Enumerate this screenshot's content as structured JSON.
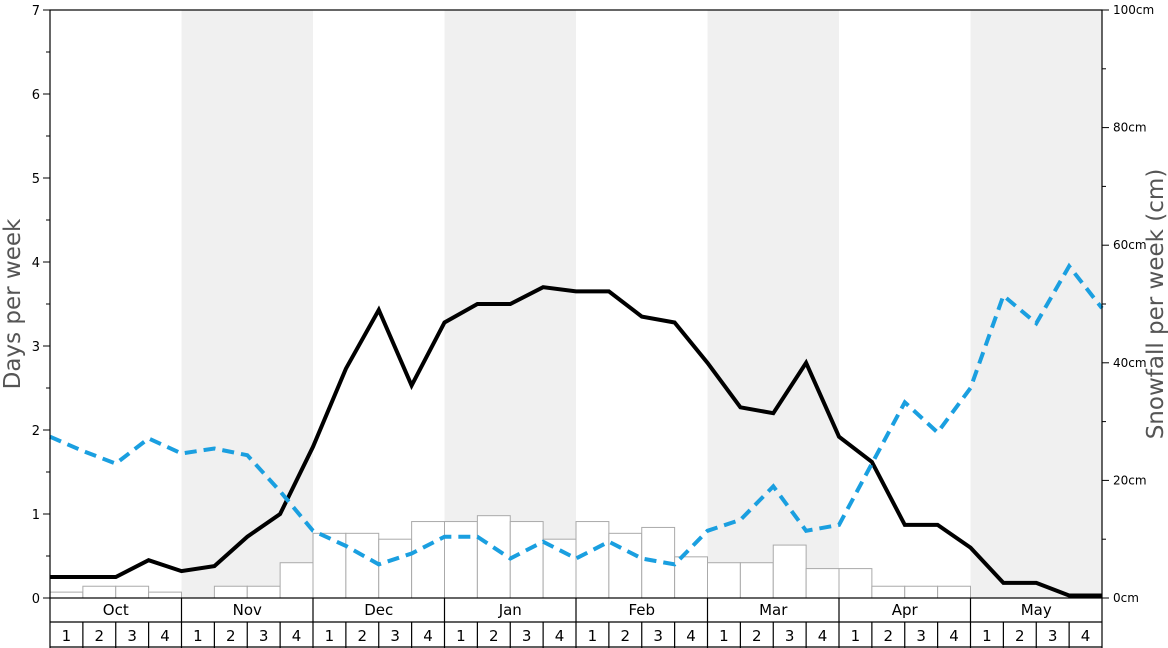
{
  "chart_data": {
    "type": "bar+line",
    "left_axis": {
      "label": "Days per week",
      "ylim": [
        0,
        7
      ],
      "ticks": [
        "0",
        "1",
        "2",
        "3",
        "4",
        "5",
        "6",
        "7"
      ]
    },
    "right_axis": {
      "label": "Snowfall per week (cm)",
      "ylim": [
        0,
        100
      ],
      "ticks": [
        "0cm",
        "20cm",
        "40cm",
        "60cm",
        "80cm",
        "100cm"
      ]
    },
    "months": [
      "Oct",
      "Nov",
      "Dec",
      "Jan",
      "Feb",
      "Mar",
      "Apr",
      "May"
    ],
    "week_labels": [
      "1",
      "2",
      "3",
      "4"
    ],
    "shaded_months": [
      "Nov",
      "Jan",
      "Mar",
      "May"
    ],
    "colors": {
      "band": "#f0f0f0",
      "bar_fill": "#ffffff",
      "bar_stroke": "#aaaaaa",
      "line_solid": "#000000",
      "line_dashed": "#1a9fe0"
    },
    "series": [
      {
        "type": "bar",
        "axis": "right",
        "unit": "cm",
        "values": [
          1,
          2,
          2,
          1,
          0,
          2,
          2,
          6,
          11,
          11,
          10,
          13,
          13,
          14,
          13,
          10,
          13,
          11,
          12,
          7,
          6,
          6,
          9,
          5,
          5,
          2,
          2,
          2,
          0,
          0,
          0,
          0
        ]
      },
      {
        "type": "line",
        "style": "solid",
        "axis": "left",
        "values": [
          0.25,
          0.25,
          0.25,
          0.45,
          0.32,
          0.38,
          0.73,
          1.0,
          1.8,
          2.73,
          3.43,
          2.53,
          3.28,
          3.5,
          3.5,
          3.7,
          3.65,
          3.65,
          3.35,
          3.28,
          2.8,
          2.27,
          2.2,
          2.8,
          1.92,
          1.62,
          0.87,
          0.87,
          0.6,
          0.18,
          0.18,
          0.03,
          0.03
        ]
      },
      {
        "type": "line",
        "style": "dashed",
        "axis": "left",
        "values": [
          1.92,
          1.75,
          1.6,
          1.9,
          1.72,
          1.78,
          1.7,
          1.27,
          0.8,
          0.62,
          0.4,
          0.53,
          0.73,
          0.73,
          0.47,
          0.67,
          0.47,
          0.67,
          0.47,
          0.4,
          0.8,
          0.93,
          1.33,
          0.8,
          0.87,
          1.6,
          2.33,
          1.97,
          2.5,
          3.6,
          3.27,
          3.95,
          3.45
        ]
      }
    ]
  }
}
